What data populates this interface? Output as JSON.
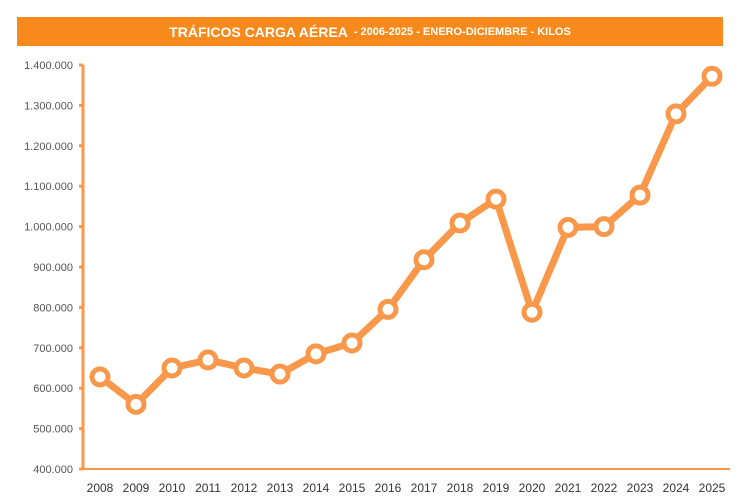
{
  "chart_data": {
    "type": "line",
    "title": "TRÁFICOS CARGA AÉREA",
    "subtitle": "- 2006-2025 - ENERO-DICIEMBRE - KILOS",
    "xlabel": "",
    "ylabel": "",
    "ylim": [
      400000,
      1400000
    ],
    "yticks": [
      "400.000",
      "500.000",
      "600.000",
      "700.000",
      "800.000",
      "900.000",
      "1.000.000",
      "1.100.000",
      "1.200.000",
      "1.300.000",
      "1.400.000"
    ],
    "categories": [
      "2008",
      "2009",
      "2010",
      "2011",
      "2012",
      "2013",
      "2014",
      "2015",
      "2016",
      "2017",
      "2018",
      "2019",
      "2020",
      "2021",
      "2022",
      "2023",
      "2024",
      "2025"
    ],
    "series": [
      {
        "values": [
          628000,
          560000,
          650000,
          670000,
          650000,
          635000,
          685000,
          712000,
          795000,
          918000,
          1009000,
          1068000,
          788000,
          998000,
          1000000,
          1078000,
          1279000,
          1372000
        ]
      }
    ],
    "grid": false,
    "legend": "none",
    "colors": {
      "line": "#f9984a",
      "title_bar": "#f78a1b",
      "axis": "#f9984a"
    }
  }
}
